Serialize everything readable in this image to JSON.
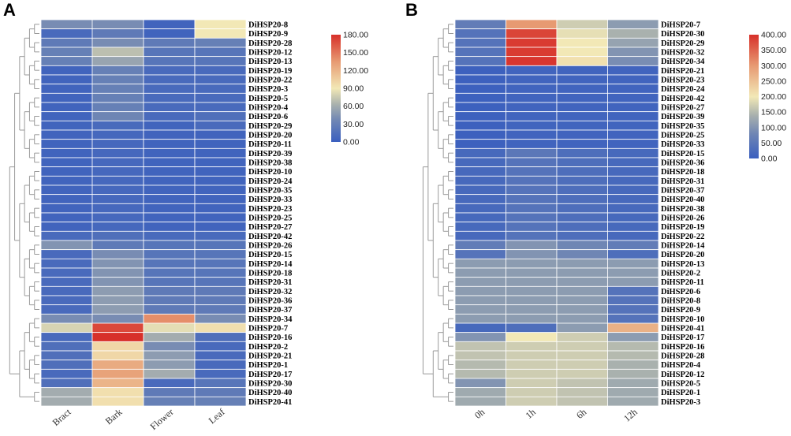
{
  "chart_data": [
    {
      "panel": "A",
      "type": "heatmap",
      "columns": [
        "Bract",
        "Bark",
        "Flower",
        "Leaf"
      ],
      "rows": [
        "DiHSP20-8",
        "DiHSP20-9",
        "DiHSP20-28",
        "DiHSP20-12",
        "DiHSP20-13",
        "DiHSP20-19",
        "DiHSP20-22",
        "DiHSP20-3",
        "DiHSP20-5",
        "DiHSP20-4",
        "DiHSP20-6",
        "DiHSP20-29",
        "DiHSP20-20",
        "DiHSP20-11",
        "DiHSP20-39",
        "DiHSP20-38",
        "DiHSP20-10",
        "DiHSP20-24",
        "DiHSP20-35",
        "DiHSP20-33",
        "DiHSP20-23",
        "DiHSP20-25",
        "DiHSP20-27",
        "DiHSP20-42",
        "DiHSP20-26",
        "DiHSP20-15",
        "DiHSP20-14",
        "DiHSP20-18",
        "DiHSP20-31",
        "DiHSP20-32",
        "DiHSP20-36",
        "DiHSP20-37",
        "DiHSP20-34",
        "DiHSP20-7",
        "DiHSP20-16",
        "DiHSP20-2",
        "DiHSP20-21",
        "DiHSP20-1",
        "DiHSP20-17",
        "DiHSP20-30",
        "DiHSP20-40",
        "DiHSP20-41"
      ],
      "values": [
        [
          40,
          40,
          5,
          90
        ],
        [
          10,
          25,
          5,
          90
        ],
        [
          25,
          40,
          25,
          30
        ],
        [
          30,
          70,
          20,
          20
        ],
        [
          30,
          55,
          20,
          20
        ],
        [
          5,
          30,
          10,
          10
        ],
        [
          5,
          30,
          10,
          10
        ],
        [
          5,
          30,
          10,
          10
        ],
        [
          5,
          30,
          10,
          10
        ],
        [
          5,
          30,
          10,
          10
        ],
        [
          5,
          35,
          10,
          15
        ],
        [
          5,
          10,
          5,
          10
        ],
        [
          5,
          8,
          5,
          5
        ],
        [
          5,
          8,
          5,
          5
        ],
        [
          5,
          8,
          5,
          5
        ],
        [
          5,
          8,
          5,
          5
        ],
        [
          5,
          8,
          5,
          5
        ],
        [
          5,
          8,
          5,
          5
        ],
        [
          5,
          8,
          5,
          5
        ],
        [
          5,
          8,
          5,
          5
        ],
        [
          5,
          8,
          5,
          5
        ],
        [
          5,
          8,
          5,
          5
        ],
        [
          5,
          8,
          5,
          5
        ],
        [
          10,
          15,
          10,
          10
        ],
        [
          45,
          25,
          20,
          20
        ],
        [
          10,
          40,
          20,
          20
        ],
        [
          10,
          45,
          20,
          20
        ],
        [
          10,
          45,
          20,
          20
        ],
        [
          10,
          45,
          20,
          20
        ],
        [
          10,
          50,
          25,
          25
        ],
        [
          10,
          50,
          25,
          25
        ],
        [
          10,
          50,
          25,
          25
        ],
        [
          40,
          40,
          140,
          40
        ],
        [
          80,
          170,
          85,
          95
        ],
        [
          10,
          180,
          60,
          15
        ],
        [
          15,
          100,
          40,
          10
        ],
        [
          15,
          100,
          50,
          10
        ],
        [
          15,
          125,
          50,
          10
        ],
        [
          10,
          130,
          60,
          10
        ],
        [
          15,
          120,
          10,
          20
        ],
        [
          60,
          95,
          25,
          25
        ],
        [
          60,
          95,
          30,
          30
        ]
      ],
      "scale": {
        "min": 0,
        "max": 180,
        "ticks": [
          "180.00",
          "150.00",
          "120.00",
          "90.00",
          "60.00",
          "30.00",
          "0.00"
        ]
      }
    },
    {
      "panel": "B",
      "type": "heatmap",
      "columns": [
        "0h",
        "1h",
        "6h",
        "12h"
      ],
      "rows": [
        "DiHSP20-7",
        "DiHSP20-30",
        "DiHSP20-29",
        "DiHSP20-32",
        "DiHSP20-34",
        "DiHSP20-21",
        "DiHSP20-23",
        "DiHSP20-24",
        "DiHSP20-42",
        "DiHSP20-27",
        "DiHSP20-39",
        "DiHSP20-35",
        "DiHSP20-25",
        "DiHSP20-33",
        "DiHSP20-15",
        "DiHSP20-36",
        "DiHSP20-18",
        "DiHSP20-31",
        "DiHSP20-37",
        "DiHSP20-40",
        "DiHSP20-38",
        "DiHSP20-26",
        "DiHSP20-19",
        "DiHSP20-22",
        "DiHSP20-14",
        "DiHSP20-20",
        "DiHSP20-13",
        "DiHSP20-2",
        "DiHSP20-11",
        "DiHSP20-6",
        "DiHSP20-8",
        "DiHSP20-9",
        "DiHSP20-10",
        "DiHSP20-41",
        "DiHSP20-17",
        "DiHSP20-16",
        "DiHSP20-28",
        "DiHSP20-4",
        "DiHSP20-12",
        "DiHSP20-5",
        "DiHSP20-1",
        "DiHSP20-3"
      ],
      "values": [
        [
          60,
          300,
          170,
          110
        ],
        [
          40,
          380,
          190,
          140
        ],
        [
          40,
          390,
          200,
          120
        ],
        [
          40,
          390,
          200,
          100
        ],
        [
          40,
          395,
          210,
          90
        ],
        [
          5,
          10,
          10,
          10
        ],
        [
          5,
          10,
          10,
          10
        ],
        [
          5,
          10,
          10,
          10
        ],
        [
          5,
          10,
          10,
          10
        ],
        [
          5,
          10,
          10,
          10
        ],
        [
          5,
          10,
          10,
          10
        ],
        [
          5,
          10,
          10,
          10
        ],
        [
          5,
          10,
          10,
          10
        ],
        [
          5,
          10,
          10,
          10
        ],
        [
          20,
          50,
          30,
          20
        ],
        [
          20,
          40,
          30,
          20
        ],
        [
          20,
          40,
          30,
          20
        ],
        [
          20,
          40,
          30,
          20
        ],
        [
          20,
          40,
          30,
          20
        ],
        [
          20,
          40,
          30,
          20
        ],
        [
          20,
          40,
          30,
          20
        ],
        [
          20,
          40,
          30,
          20
        ],
        [
          20,
          40,
          30,
          20
        ],
        [
          20,
          40,
          30,
          20
        ],
        [
          60,
          100,
          80,
          60
        ],
        [
          40,
          100,
          80,
          30
        ],
        [
          110,
          110,
          110,
          110
        ],
        [
          110,
          110,
          110,
          110
        ],
        [
          110,
          110,
          110,
          110
        ],
        [
          110,
          110,
          110,
          40
        ],
        [
          110,
          110,
          110,
          40
        ],
        [
          110,
          110,
          110,
          40
        ],
        [
          110,
          110,
          110,
          40
        ],
        [
          20,
          30,
          110,
          270
        ],
        [
          100,
          200,
          170,
          110
        ],
        [
          160,
          170,
          170,
          150
        ],
        [
          160,
          170,
          170,
          150
        ],
        [
          150,
          170,
          170,
          140
        ],
        [
          150,
          170,
          170,
          140
        ],
        [
          100,
          170,
          160,
          130
        ],
        [
          130,
          170,
          160,
          130
        ],
        [
          130,
          170,
          160,
          130
        ]
      ],
      "scale": {
        "min": 0,
        "max": 400,
        "ticks": [
          "400.00",
          "350.00",
          "300.00",
          "250.00",
          "200.00",
          "150.00",
          "100.00",
          "50.00",
          "0.00"
        ]
      }
    }
  ],
  "colors": {
    "low": "#3a5fbf",
    "mid": "#f2e8b6",
    "high": "#d7302a",
    "dendrogram": "#9a9a9a",
    "grid": "#ffffff"
  }
}
